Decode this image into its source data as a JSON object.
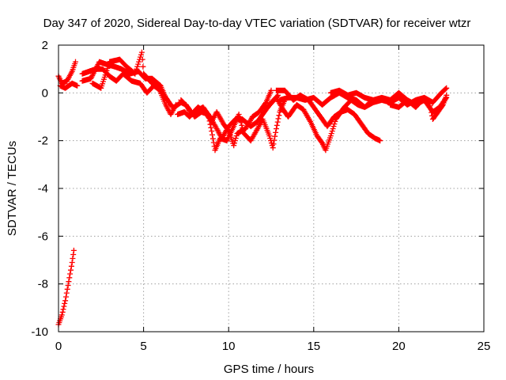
{
  "chart_data": {
    "type": "scatter",
    "title": "Day 347 of 2020, Sidereal Day-to-day VTEC variation (SDTVAR) for receiver wtzr",
    "xlabel": "GPS time / hours",
    "ylabel": "SDTVAR / TECUs",
    "xlim": [
      0,
      25
    ],
    "ylim": [
      -10,
      2
    ],
    "xticks": [
      0,
      5,
      10,
      15,
      20,
      25
    ],
    "yticks": [
      -10,
      -8,
      -6,
      -4,
      -2,
      0,
      2
    ],
    "grid": true,
    "marker": "+",
    "color": "#ff0000",
    "tracks": [
      [
        [
          0.0,
          -9.7
        ],
        [
          0.2,
          -9.3
        ],
        [
          0.4,
          -8.7
        ],
        [
          0.6,
          -7.9
        ],
        [
          0.8,
          -7.1
        ],
        [
          0.9,
          -6.6
        ]
      ],
      [
        [
          0.0,
          0.7
        ],
        [
          0.2,
          0.4
        ],
        [
          0.5,
          0.5
        ],
        [
          0.8,
          0.9
        ],
        [
          1.0,
          1.3
        ]
      ],
      [
        [
          0.1,
          0.3
        ],
        [
          0.4,
          0.2
        ],
        [
          0.8,
          0.4
        ],
        [
          1.1,
          0.3
        ]
      ],
      [
        [
          1.4,
          0.8
        ],
        [
          1.8,
          0.9
        ],
        [
          2.2,
          1.0
        ],
        [
          2.6,
          1.0
        ],
        [
          3.0,
          0.7
        ],
        [
          3.4,
          0.5
        ],
        [
          3.8,
          0.8
        ],
        [
          4.3,
          0.5
        ],
        [
          4.8,
          0.4
        ],
        [
          5.2,
          0.0
        ],
        [
          5.6,
          0.3
        ],
        [
          6.0,
          0.1
        ],
        [
          6.4,
          -0.3
        ]
      ],
      [
        [
          1.4,
          0.5
        ],
        [
          1.9,
          0.6
        ],
        [
          2.4,
          1.3
        ],
        [
          2.8,
          1.2
        ],
        [
          3.3,
          1.1
        ],
        [
          3.7,
          1.0
        ],
        [
          4.2,
          0.8
        ],
        [
          4.7,
          0.9
        ],
        [
          5.1,
          0.6
        ],
        [
          5.5,
          0.6
        ],
        [
          6.0,
          0.3
        ],
        [
          6.3,
          -0.2
        ],
        [
          6.7,
          -0.6
        ]
      ],
      [
        [
          2.0,
          0.4
        ],
        [
          2.5,
          0.2
        ],
        [
          3.0,
          1.3
        ],
        [
          3.6,
          1.4
        ],
        [
          4.0,
          1.1
        ],
        [
          4.5,
          0.8
        ],
        [
          4.9,
          1.7
        ],
        [
          5.0,
          0.8
        ],
        [
          5.5,
          0.4
        ],
        [
          5.9,
          0.2
        ],
        [
          6.3,
          -0.5
        ],
        [
          6.6,
          -0.9
        ],
        [
          6.9,
          -0.5
        ]
      ],
      [
        [
          6.8,
          -0.6
        ],
        [
          7.2,
          -0.4
        ],
        [
          7.5,
          -0.5
        ],
        [
          7.8,
          -0.9
        ],
        [
          8.2,
          -0.6
        ],
        [
          8.6,
          -0.8
        ],
        [
          9.0,
          -1.2
        ],
        [
          9.3,
          -0.8
        ],
        [
          9.7,
          -1.3
        ],
        [
          10.0,
          -1.6
        ],
        [
          10.3,
          -2.2
        ],
        [
          10.5,
          -1.7
        ],
        [
          11.0,
          -1.5
        ],
        [
          11.4,
          -1.0
        ],
        [
          11.8,
          -0.8
        ],
        [
          12.2,
          -0.4
        ],
        [
          12.5,
          0.1
        ]
      ],
      [
        [
          7.0,
          -0.9
        ],
        [
          7.4,
          -0.8
        ],
        [
          7.7,
          -1.0
        ],
        [
          8.0,
          -0.8
        ],
        [
          8.5,
          -0.6
        ],
        [
          8.9,
          -1.0
        ],
        [
          9.3,
          -1.5
        ],
        [
          9.6,
          -1.9
        ],
        [
          10.0,
          -1.4
        ],
        [
          10.4,
          -1.1
        ],
        [
          10.8,
          -1.1
        ],
        [
          11.3,
          -1.4
        ],
        [
          11.7,
          -1.2
        ],
        [
          12.1,
          -0.8
        ],
        [
          12.5,
          -0.4
        ],
        [
          12.9,
          -0.1
        ]
      ],
      [
        [
          7.2,
          -0.3
        ],
        [
          7.6,
          -0.6
        ],
        [
          8.0,
          -1.0
        ],
        [
          8.4,
          -0.8
        ],
        [
          8.8,
          -0.9
        ],
        [
          9.0,
          -1.6
        ],
        [
          9.2,
          -2.4
        ],
        [
          9.5,
          -1.9
        ],
        [
          9.9,
          -2.0
        ],
        [
          10.3,
          -1.4
        ],
        [
          10.6,
          -0.9
        ],
        [
          10.9,
          -1.7
        ],
        [
          11.3,
          -2.0
        ],
        [
          11.7,
          -1.5
        ],
        [
          12.0,
          -1.1
        ],
        [
          12.4,
          -1.8
        ],
        [
          12.6,
          -2.3
        ],
        [
          12.8,
          -1.5
        ],
        [
          13.0,
          -0.8
        ],
        [
          13.3,
          -0.3
        ]
      ],
      [
        [
          12.3,
          -0.6
        ],
        [
          12.8,
          -0.2
        ],
        [
          13.2,
          -0.7
        ],
        [
          13.5,
          -1.0
        ],
        [
          14.0,
          -0.5
        ],
        [
          14.4,
          -0.7
        ],
        [
          14.8,
          -1.2
        ],
        [
          15.2,
          -1.8
        ],
        [
          15.5,
          -2.1
        ],
        [
          15.7,
          -2.4
        ],
        [
          16.0,
          -1.8
        ],
        [
          16.3,
          -1.1
        ],
        [
          16.8,
          -0.6
        ],
        [
          17.2,
          -0.3
        ],
        [
          17.6,
          -0.5
        ],
        [
          18.0,
          -0.6
        ],
        [
          18.3,
          -0.4
        ]
      ],
      [
        [
          12.8,
          0.1
        ],
        [
          13.3,
          0.1
        ],
        [
          13.8,
          -0.3
        ],
        [
          14.2,
          -0.1
        ],
        [
          14.7,
          -0.3
        ],
        [
          15.0,
          -0.6
        ],
        [
          15.4,
          -1.0
        ],
        [
          15.8,
          -1.4
        ],
        [
          16.2,
          -1.0
        ],
        [
          16.6,
          -0.8
        ],
        [
          17.0,
          -0.7
        ],
        [
          17.4,
          -0.9
        ],
        [
          17.8,
          -1.3
        ],
        [
          18.2,
          -1.7
        ],
        [
          18.6,
          -1.9
        ],
        [
          18.9,
          -2.0
        ]
      ],
      [
        [
          13.0,
          -0.3
        ],
        [
          13.5,
          -0.2
        ],
        [
          14.0,
          -0.2
        ],
        [
          14.5,
          -0.3
        ],
        [
          15.0,
          -0.2
        ],
        [
          15.5,
          -0.5
        ],
        [
          16.0,
          -0.2
        ],
        [
          16.5,
          0.0
        ],
        [
          17.0,
          -0.2
        ],
        [
          17.5,
          -0.3
        ],
        [
          18.0,
          -0.6
        ],
        [
          18.5,
          -0.4
        ],
        [
          19.0,
          -0.3
        ],
        [
          19.5,
          -0.4
        ],
        [
          20.0,
          -0.2
        ],
        [
          20.5,
          -0.5
        ],
        [
          21.0,
          -0.3
        ],
        [
          21.5,
          -0.2
        ],
        [
          22.0,
          -0.4
        ],
        [
          22.5,
          0.0
        ],
        [
          22.8,
          0.2
        ]
      ],
      [
        [
          16.0,
          0.0
        ],
        [
          16.5,
          0.1
        ],
        [
          17.0,
          -0.1
        ],
        [
          17.5,
          0.0
        ],
        [
          18.0,
          -0.2
        ],
        [
          18.5,
          -0.3
        ],
        [
          19.0,
          -0.2
        ],
        [
          19.5,
          -0.3
        ],
        [
          20.0,
          0.0
        ],
        [
          20.5,
          -0.3
        ],
        [
          21.0,
          -0.5
        ],
        [
          21.5,
          -0.3
        ],
        [
          22.0,
          -0.8
        ],
        [
          22.4,
          -0.6
        ],
        [
          22.8,
          -0.2
        ]
      ],
      [
        [
          19.5,
          -0.5
        ],
        [
          20.0,
          -0.6
        ],
        [
          20.5,
          -0.3
        ],
        [
          21.0,
          -0.6
        ],
        [
          21.5,
          -0.2
        ],
        [
          21.8,
          -0.4
        ],
        [
          22.0,
          -1.1
        ],
        [
          22.3,
          -0.8
        ],
        [
          22.6,
          -0.5
        ],
        [
          22.8,
          -0.1
        ]
      ]
    ]
  }
}
